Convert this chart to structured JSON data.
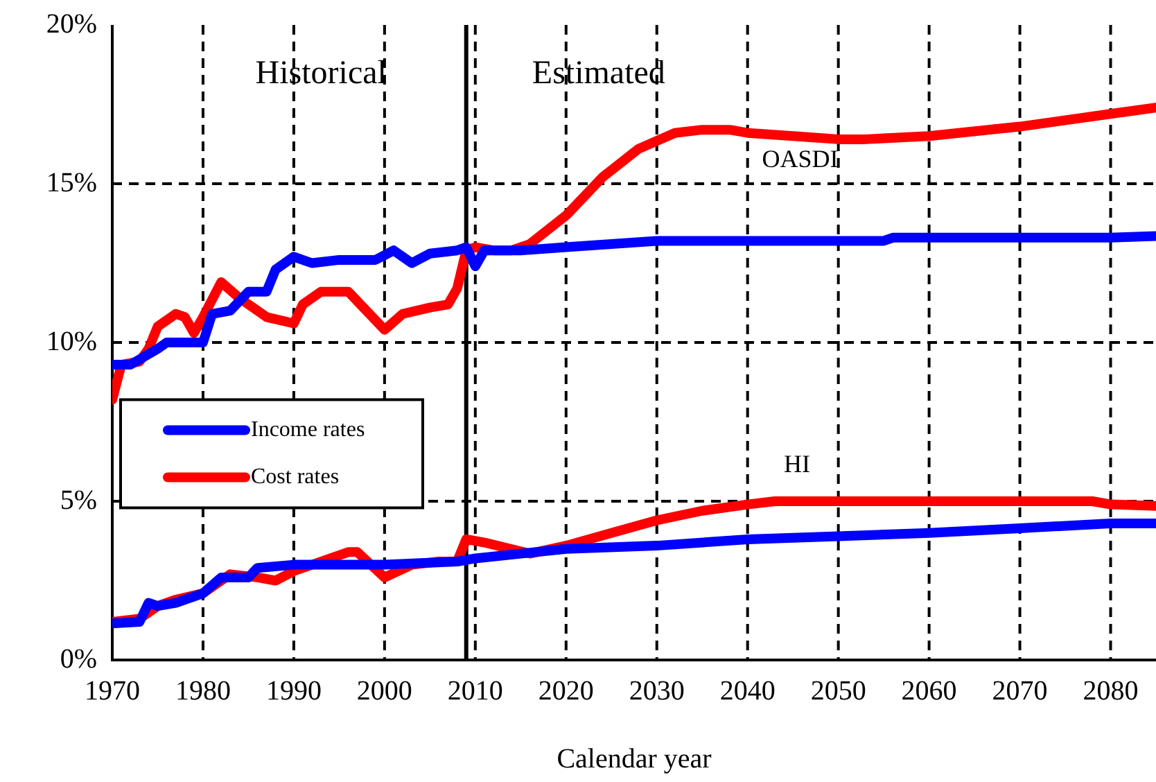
{
  "chart_data": {
    "type": "line",
    "xlabel": "Calendar year",
    "xlim": [
      1970,
      2085
    ],
    "xticks": [
      1970,
      1980,
      1990,
      2000,
      2010,
      2020,
      2030,
      2040,
      2050,
      2060,
      2070,
      2080
    ],
    "ylim": [
      0,
      20
    ],
    "yticks": [
      {
        "value": 0,
        "label": "0%"
      },
      {
        "value": 5,
        "label": "5%"
      },
      {
        "value": 10,
        "label": "10%"
      },
      {
        "value": 15,
        "label": "15%"
      },
      {
        "value": 20,
        "label": "20%"
      }
    ],
    "grid": true,
    "legend": "left",
    "marker": "none",
    "line_style": "solid",
    "ref_lines": [
      {
        "axis": "x",
        "value": 2009,
        "color": "#000000",
        "line_style": "solid"
      }
    ],
    "annotations": [
      "Historical",
      "Estimated",
      "OASDI",
      "HI"
    ],
    "series": [
      {
        "name": "Income rates",
        "color": "#0000ff",
        "x": [
          1970,
          1972,
          1975,
          1976,
          1980,
          1981,
          1983,
          1985,
          1987,
          1988,
          1990,
          1992,
          1995,
          1999,
          2001,
          2003,
          2005,
          2008,
          2009,
          2010,
          2011,
          2015,
          2020,
          2025,
          2030,
          2055,
          2056,
          2080,
          2085
        ],
        "values": [
          9.3,
          9.3,
          9.8,
          10.0,
          10.0,
          10.9,
          11.0,
          11.6,
          11.6,
          12.3,
          12.7,
          12.5,
          12.6,
          12.6,
          12.9,
          12.5,
          12.8,
          12.9,
          13.0,
          12.4,
          12.9,
          12.9,
          13.0,
          13.1,
          13.2,
          13.2,
          13.3,
          13.3,
          13.35
        ]
      },
      {
        "name": "Cost rates",
        "color": "#ff0000",
        "x": [
          1970,
          1971,
          1973,
          1974,
          1975,
          1977,
          1978,
          1979,
          1980,
          1982,
          1984,
          1987,
          1990,
          1991,
          1993,
          1996,
          1998,
          2000,
          2002,
          2005,
          2007,
          2008,
          2009,
          2010,
          2012,
          2014,
          2016,
          2020,
          2024,
          2028,
          2032,
          2035,
          2038,
          2040,
          2045,
          2050,
          2053,
          2060,
          2070,
          2080,
          2085
        ],
        "values": [
          8.2,
          9.3,
          9.4,
          9.8,
          10.5,
          10.9,
          10.8,
          10.3,
          10.8,
          11.9,
          11.4,
          10.8,
          10.6,
          11.2,
          11.6,
          11.6,
          11.0,
          10.4,
          10.9,
          11.1,
          11.2,
          11.7,
          12.9,
          13.0,
          12.9,
          12.9,
          13.1,
          14.0,
          15.2,
          16.1,
          16.6,
          16.7,
          16.7,
          16.6,
          16.5,
          16.4,
          16.4,
          16.5,
          16.8,
          17.2,
          17.4
        ]
      },
      {
        "color": "#0000ff",
        "x": [
          1970,
          1973,
          1974,
          1975,
          1977,
          1980,
          1982,
          1985,
          1986,
          1990,
          2000,
          2008,
          2010,
          2020,
          2030,
          2040,
          2050,
          2060,
          2070,
          2080,
          2085
        ],
        "values": [
          1.15,
          1.2,
          1.8,
          1.7,
          1.8,
          2.1,
          2.6,
          2.6,
          2.9,
          3.0,
          3.0,
          3.1,
          3.2,
          3.5,
          3.6,
          3.8,
          3.9,
          4.0,
          4.15,
          4.3,
          4.3
        ]
      },
      {
        "color": "#ff0000",
        "x": [
          1970,
          1973,
          1975,
          1977,
          1980,
          1983,
          1986,
          1988,
          1990,
          1993,
          1996,
          1997,
          2000,
          2003,
          2006,
          2008,
          2009,
          2011,
          2016,
          2020,
          2025,
          2030,
          2035,
          2040,
          2043,
          2078,
          2080,
          2085
        ],
        "values": [
          1.2,
          1.3,
          1.7,
          1.9,
          2.1,
          2.7,
          2.6,
          2.5,
          2.8,
          3.1,
          3.4,
          3.4,
          2.6,
          3.0,
          3.1,
          3.1,
          3.8,
          3.7,
          3.35,
          3.6,
          4.0,
          4.4,
          4.7,
          4.9,
          5.0,
          5.0,
          4.9,
          4.85
        ]
      }
    ]
  }
}
